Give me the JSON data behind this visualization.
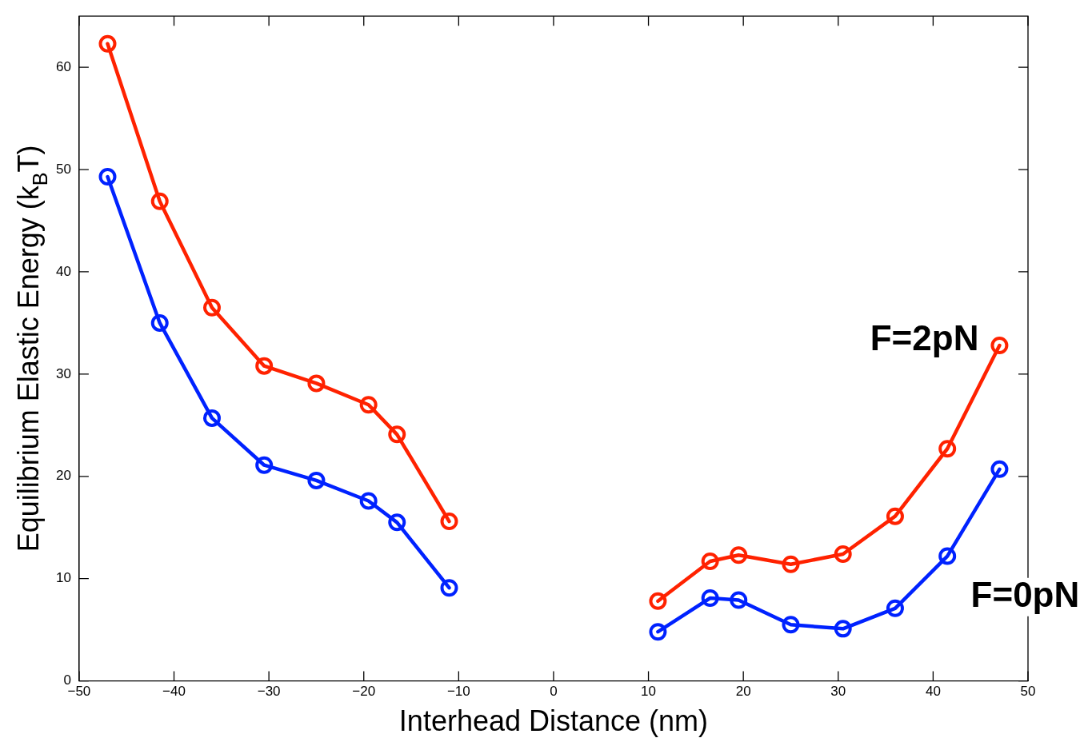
{
  "chart_data": {
    "type": "line",
    "xlabel": "Interhead Distance (nm)",
    "ylabel": "Equilibrium Elastic Energy (k$_{B}$T)",
    "series": [
      {
        "name": "F=2pN",
        "color": "#ff2200",
        "x": [
          -47,
          -41.5,
          -36,
          -30.5,
          -25,
          -19.5,
          -16.5,
          -11,
          null,
          11,
          16.5,
          19.5,
          25,
          30.5,
          36,
          41.5,
          47
        ],
        "values": [
          62.3,
          46.9,
          36.5,
          30.8,
          29.1,
          27.0,
          24.1,
          15.6,
          null,
          7.8,
          11.7,
          12.3,
          11.4,
          12.4,
          16.1,
          22.7,
          32.8
        ]
      },
      {
        "name": "F=0pN",
        "color": "#0022ff",
        "x": [
          -47,
          -41.5,
          -36,
          -30.5,
          -25,
          -19.5,
          -16.5,
          -11,
          null,
          11,
          16.5,
          19.5,
          25,
          30.5,
          36,
          41.5,
          47
        ],
        "values": [
          49.3,
          35.0,
          25.7,
          21.1,
          19.6,
          17.6,
          15.5,
          9.1,
          null,
          4.8,
          8.1,
          7.9,
          5.5,
          5.1,
          7.1,
          12.2,
          20.7
        ]
      }
    ],
    "xlim": [
      -50,
      50
    ],
    "xticks": [
      -50,
      -40,
      -30,
      -20,
      -10,
      0,
      10,
      20,
      30,
      40,
      50
    ],
    "ylim": [
      0,
      65
    ],
    "yticks": [
      0,
      10,
      20,
      30,
      40,
      50,
      60
    ],
    "grid": false,
    "legend": false,
    "marker": "circle",
    "line_style": "solid"
  }
}
